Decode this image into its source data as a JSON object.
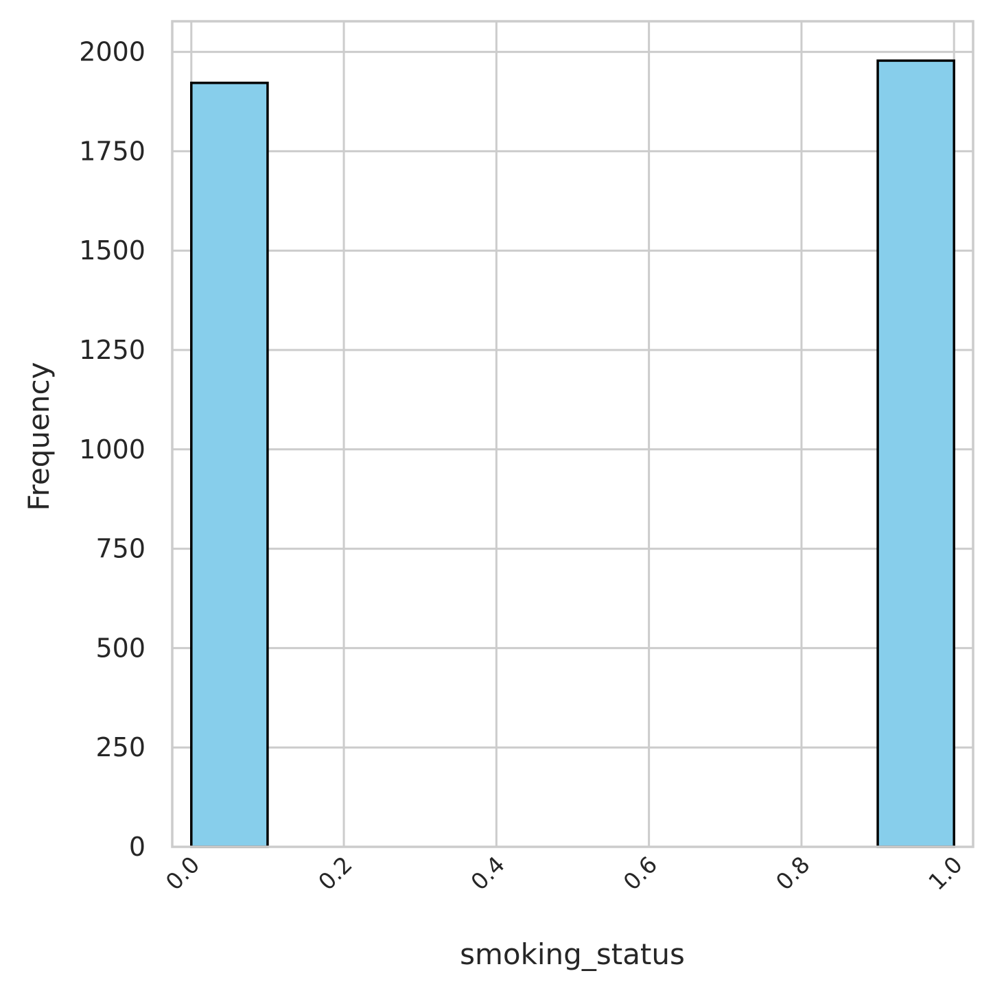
{
  "chart_data": {
    "type": "bar",
    "title": "",
    "xlabel": "smoking_status",
    "ylabel": "Frequency",
    "bin_edges": [
      0.0,
      0.1,
      0.2,
      0.3,
      0.4,
      0.5,
      0.6,
      0.7,
      0.8,
      0.9,
      1.0
    ],
    "values": [
      1922,
      0,
      0,
      0,
      0,
      0,
      0,
      0,
      0,
      1978
    ],
    "xlim": [
      -0.025,
      1.025
    ],
    "ylim": [
      0,
      2077
    ],
    "x_ticks": [
      0.0,
      0.2,
      0.4,
      0.6,
      0.8,
      1.0
    ],
    "x_tick_labels": [
      "0.0",
      "0.2",
      "0.4",
      "0.6",
      "0.8",
      "1.0"
    ],
    "x_tick_rotation_deg": 45,
    "y_ticks": [
      0,
      250,
      500,
      750,
      1000,
      1250,
      1500,
      1750,
      2000
    ],
    "y_tick_labels": [
      "0",
      "250",
      "500",
      "750",
      "1000",
      "1250",
      "1500",
      "1750",
      "2000"
    ],
    "grid": true,
    "legend": "none",
    "bar_color": "#87CEEB",
    "edge_color": "#000000",
    "grid_color": "#cccccc",
    "text_color": "#262626"
  }
}
